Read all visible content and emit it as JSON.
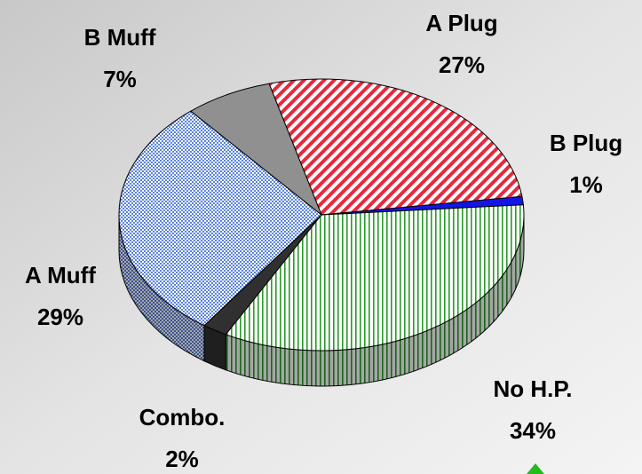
{
  "chart_data": {
    "type": "pie3d",
    "categories": [
      "A Plug",
      "B Plug",
      "No H.P.",
      "Combo.",
      "A Muff",
      "B Muff"
    ],
    "values": [
      27,
      1,
      34,
      2,
      29,
      7
    ],
    "value_labels": [
      "27%",
      "1%",
      "34%",
      "2%",
      "29%",
      "7%"
    ],
    "colors": [
      "#e8283c",
      "#1414e6",
      "#2a9a2a",
      "#303030",
      "#5a82e0",
      "#909090"
    ],
    "patterns": [
      "diagonal",
      "solid",
      "vertical",
      "solid",
      "checker",
      "solid"
    ]
  }
}
